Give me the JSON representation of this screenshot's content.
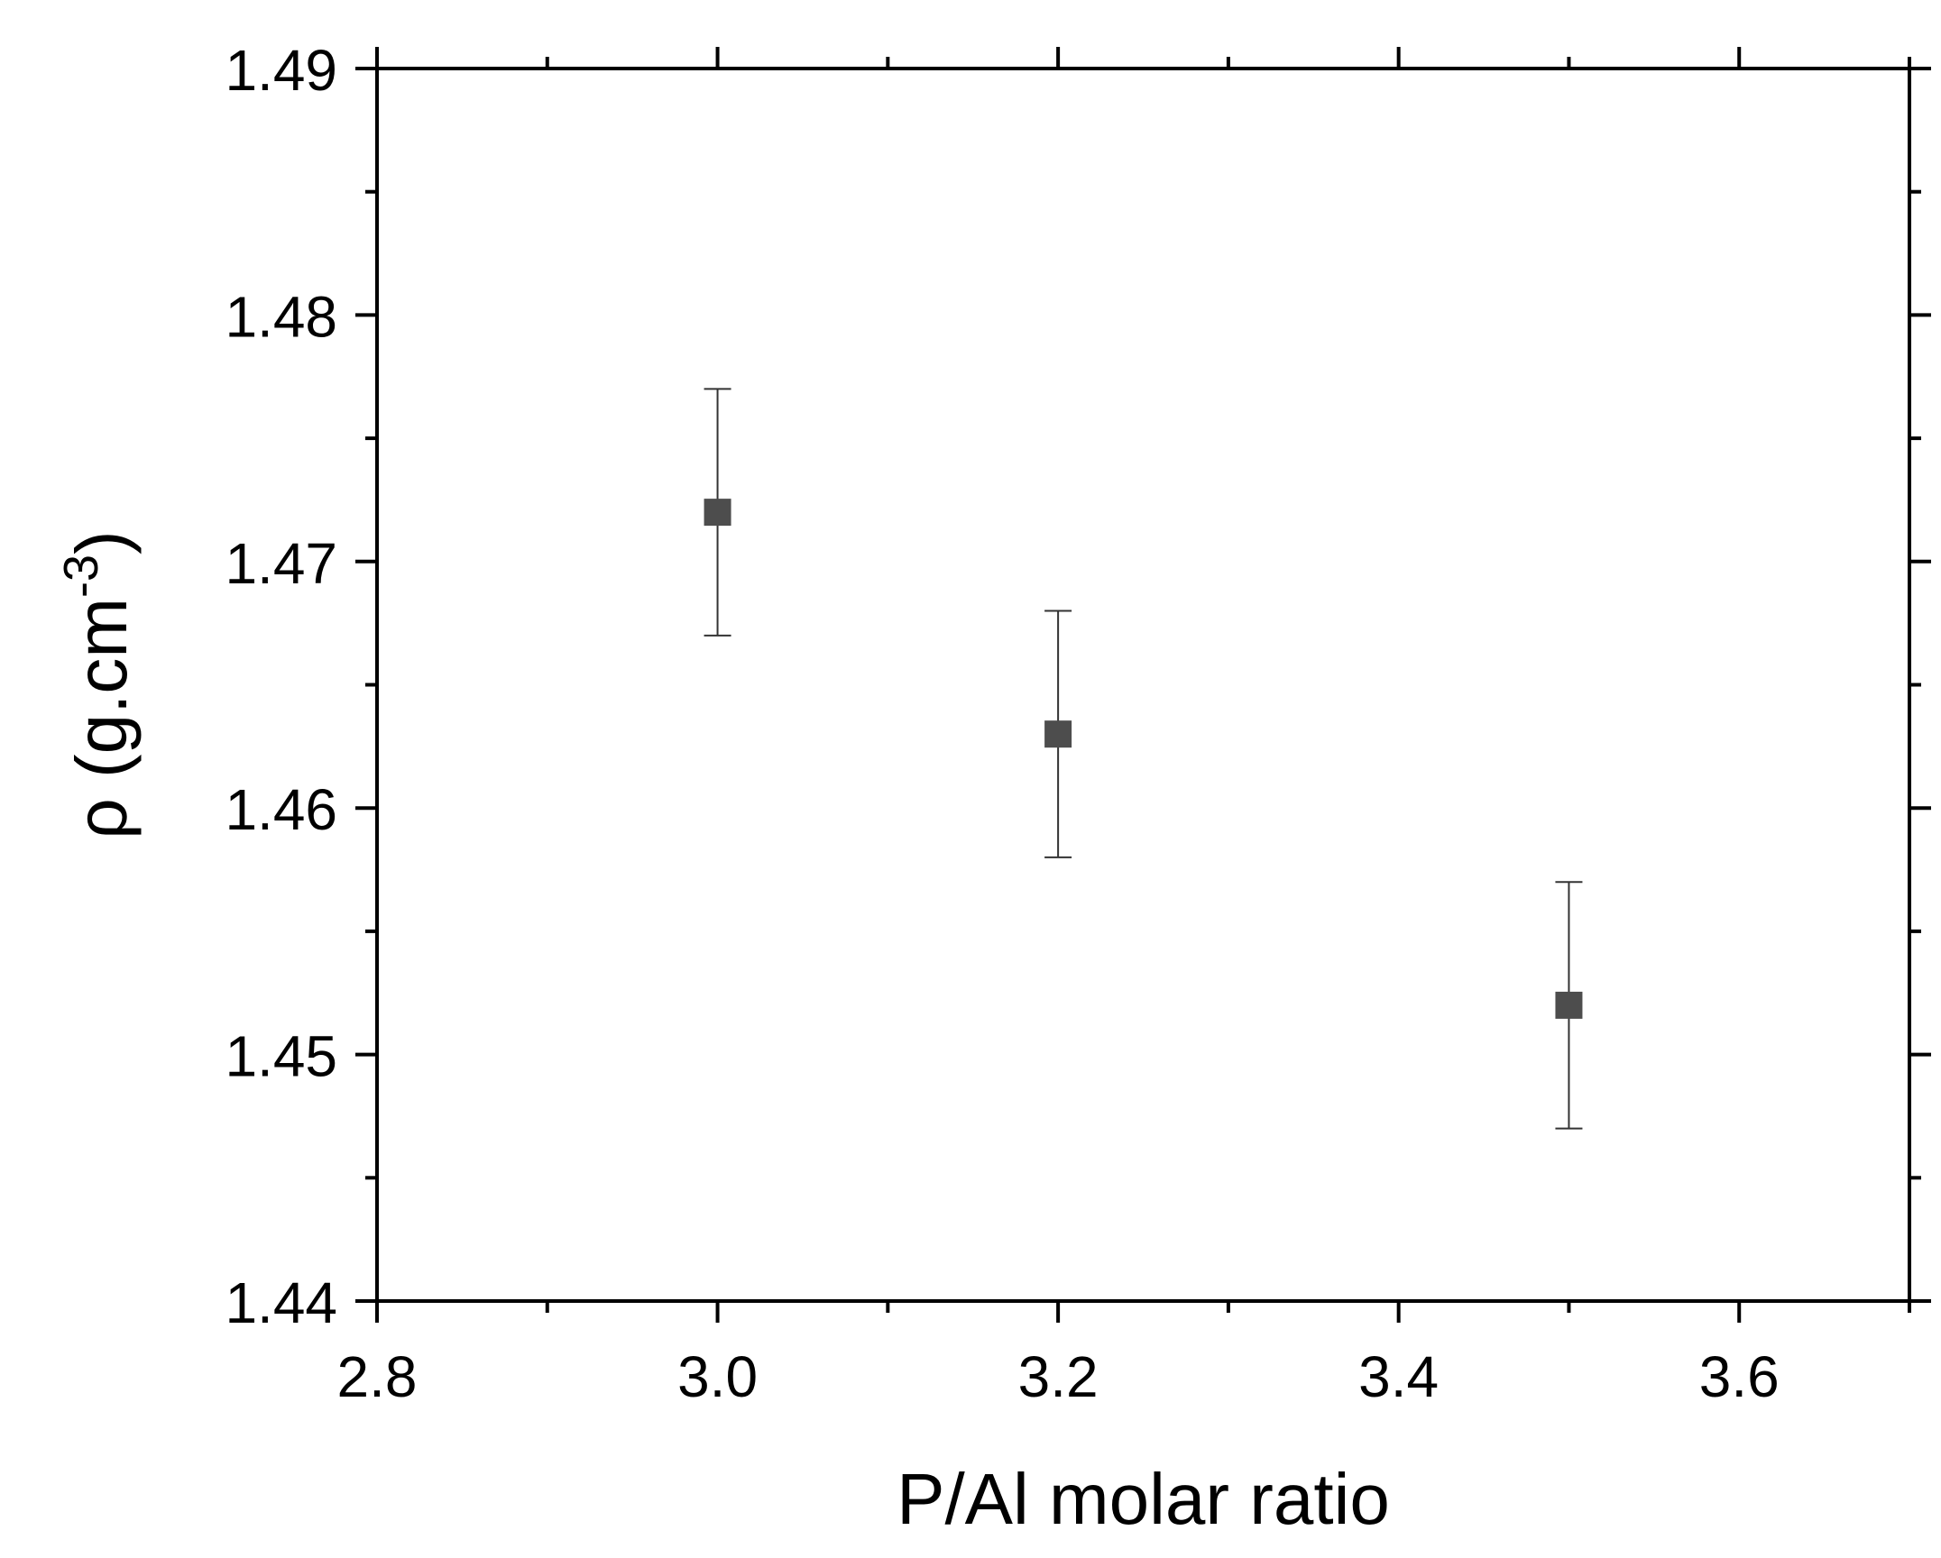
{
  "chart_data": {
    "type": "scatter",
    "title": "",
    "xlabel": "P/Al molar ratio",
    "ylabel": {
      "prefix": "ρ (g.cm",
      "sup": "-3",
      "suffix": ")"
    },
    "xlim": [
      2.8,
      3.7
    ],
    "ylim": [
      1.44,
      1.49
    ],
    "xticks": [
      2.8,
      3.0,
      3.2,
      3.4,
      3.6
    ],
    "xtick_labels": [
      "2.8",
      "3.0",
      "3.2",
      "3.4",
      "3.6"
    ],
    "xminor": [
      2.9,
      3.1,
      3.3,
      3.5,
      3.7
    ],
    "yticks": [
      1.44,
      1.45,
      1.46,
      1.47,
      1.48,
      1.49
    ],
    "ytick_labels": [
      "1.44",
      "1.45",
      "1.46",
      "1.47",
      "1.48",
      "1.49"
    ],
    "yminor": [
      1.445,
      1.455,
      1.465,
      1.475,
      1.485
    ],
    "grid": false,
    "series": [
      {
        "marker": "square",
        "color": "#4d4d4d",
        "points": [
          {
            "x": 3.0,
            "y": 1.472,
            "err": 0.005
          },
          {
            "x": 3.2,
            "y": 1.463,
            "err": 0.005
          },
          {
            "x": 3.5,
            "y": 1.452,
            "err": 0.005
          }
        ]
      }
    ]
  }
}
